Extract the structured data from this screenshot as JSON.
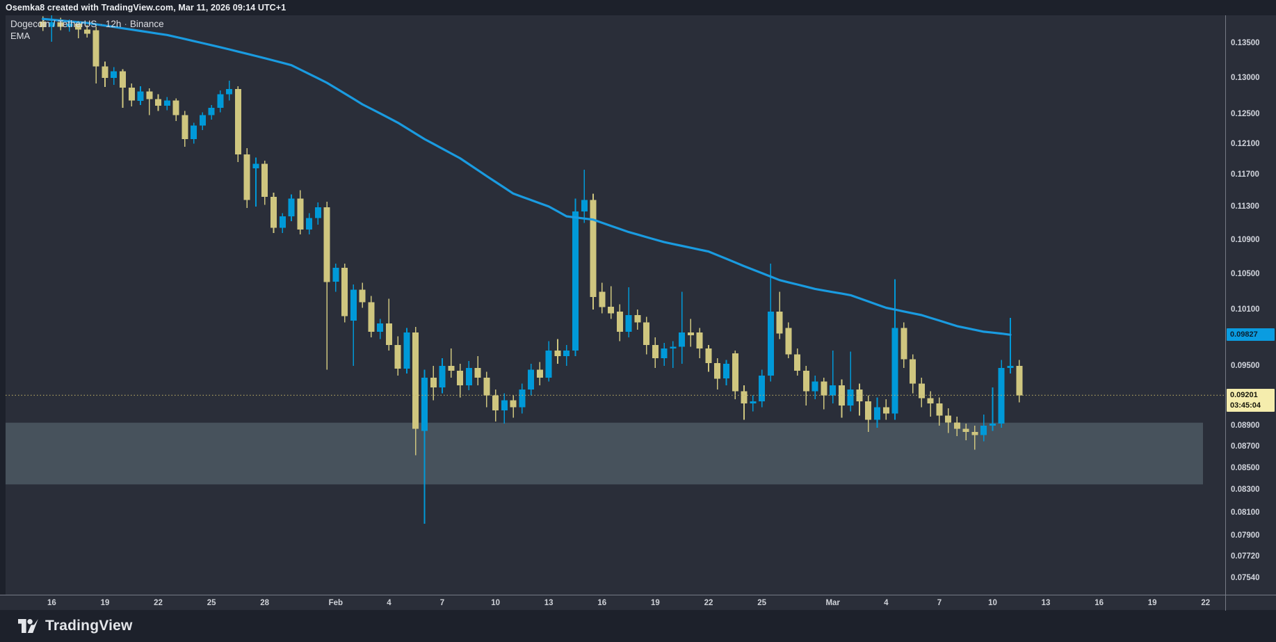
{
  "top_bar": {
    "attribution": "Osemka8 created with TradingView.com, Mar 11, 2026 09:14 UTC+1"
  },
  "legend": {
    "symbol": "Dogecoin / TetherUS",
    "separator": "·",
    "interval": "12h",
    "exchange": "Binance",
    "indicator": "EMA"
  },
  "badges": {
    "ema_value": "0.09827",
    "price_value": "0.09201",
    "countdown": "03:45:04"
  },
  "logo": {
    "text": "TradingView"
  },
  "colors": {
    "background_outer": "#1d212b",
    "background_pane": "#2a2e39",
    "axis_line": "#767b86",
    "axis_text": "#d1d4dc",
    "candle_up": "#0099d8",
    "candle_down": "#cfc67f",
    "ema_line": "#1a9be0",
    "price_line": "#c9ba6b",
    "zone_fill": "#47525c",
    "badge_price_bg": "#f5edad",
    "badge_price_text": "#15150a",
    "badge_ema_bg": "#0a9ce0",
    "badge_ema_text": "#0b2030"
  },
  "chart_data": {
    "type": "candlestick",
    "title": "Dogecoin / TetherUS · 12h · Binance",
    "symbol": "Dogecoin / TetherUS",
    "exchange": "Binance",
    "interval": "12h",
    "indicator": "EMA",
    "scale_type": "log",
    "grid": false,
    "price_range_visible": [
      0.0754,
      0.1395
    ],
    "last_price": 0.09201,
    "last_price_countdown": "03:45:04",
    "ema_last": 0.09827,
    "price_axis_ticks": [
      {
        "text": "0.13500",
        "value": 0.135
      },
      {
        "text": "0.13000",
        "value": 0.13
      },
      {
        "text": "0.12500",
        "value": 0.125
      },
      {
        "text": "0.12100",
        "value": 0.121
      },
      {
        "text": "0.11700",
        "value": 0.117
      },
      {
        "text": "0.11300",
        "value": 0.113
      },
      {
        "text": "0.10900",
        "value": 0.109
      },
      {
        "text": "0.10500",
        "value": 0.105
      },
      {
        "text": "0.10100",
        "value": 0.101
      },
      {
        "text": "0.09500",
        "value": 0.095
      },
      {
        "text": "0.08900",
        "value": 0.089
      },
      {
        "text": "0.08700",
        "value": 0.087
      },
      {
        "text": "0.08500",
        "value": 0.085
      },
      {
        "text": "0.08300",
        "value": 0.083
      },
      {
        "text": "0.08100",
        "value": 0.081
      },
      {
        "text": "0.07900",
        "value": 0.079
      },
      {
        "text": "0.07720",
        "value": 0.0772
      },
      {
        "text": "0.07540",
        "value": 0.0754
      }
    ],
    "time_axis_labels": [
      {
        "text": "16",
        "bar": 1
      },
      {
        "text": "19",
        "bar": 7
      },
      {
        "text": "22",
        "bar": 13
      },
      {
        "text": "25",
        "bar": 19
      },
      {
        "text": "28",
        "bar": 25
      },
      {
        "text": "Feb",
        "bar": 33
      },
      {
        "text": "4",
        "bar": 39
      },
      {
        "text": "7",
        "bar": 45
      },
      {
        "text": "10",
        "bar": 51
      },
      {
        "text": "13",
        "bar": 57
      },
      {
        "text": "16",
        "bar": 63
      },
      {
        "text": "19",
        "bar": 69
      },
      {
        "text": "22",
        "bar": 75
      },
      {
        "text": "25",
        "bar": 81
      },
      {
        "text": "Mar",
        "bar": 89
      },
      {
        "text": "4",
        "bar": 95
      },
      {
        "text": "7",
        "bar": 101
      },
      {
        "text": "10",
        "bar": 107
      },
      {
        "text": "13",
        "bar": 113
      },
      {
        "text": "16",
        "bar": 119
      },
      {
        "text": "19",
        "bar": 125
      },
      {
        "text": "22",
        "bar": 131
      }
    ],
    "zone": {
      "price_top": 0.0893,
      "price_bottom": 0.0835,
      "start_bar": -4.2,
      "end_bar": 130.7
    },
    "price_line_value": 0.09201,
    "candles": [
      [
        0.1382,
        0.139,
        0.1368,
        0.1374
      ],
      [
        0.1374,
        0.1392,
        0.1352,
        0.1381
      ],
      [
        0.1381,
        0.1388,
        0.1369,
        0.1374
      ],
      [
        0.1374,
        0.1385,
        0.1367,
        0.1379
      ],
      [
        0.1379,
        0.1383,
        0.1357,
        0.137
      ],
      [
        0.137,
        0.1377,
        0.1358,
        0.1364
      ],
      [
        0.1369,
        0.1374,
        0.1292,
        0.1316
      ],
      [
        0.1316,
        0.1323,
        0.1287,
        0.13
      ],
      [
        0.13,
        0.1315,
        0.129,
        0.1309
      ],
      [
        0.1309,
        0.1312,
        0.1258,
        0.1286
      ],
      [
        0.1286,
        0.1292,
        0.126,
        0.1268
      ],
      [
        0.1268,
        0.1288,
        0.1262,
        0.1281
      ],
      [
        0.1281,
        0.1285,
        0.1248,
        0.127
      ],
      [
        0.127,
        0.1277,
        0.1254,
        0.1261
      ],
      [
        0.1261,
        0.1273,
        0.1255,
        0.1268
      ],
      [
        0.1268,
        0.1271,
        0.124,
        0.1248
      ],
      [
        0.1248,
        0.1254,
        0.1206,
        0.1216
      ],
      [
        0.1216,
        0.1238,
        0.121,
        0.1234
      ],
      [
        0.1234,
        0.1252,
        0.1228,
        0.1248
      ],
      [
        0.1248,
        0.1262,
        0.1242,
        0.1258
      ],
      [
        0.1258,
        0.1282,
        0.1252,
        0.1277
      ],
      [
        0.1277,
        0.1296,
        0.1268,
        0.1284
      ],
      [
        0.1284,
        0.1288,
        0.1186,
        0.1196
      ],
      [
        0.1196,
        0.1204,
        0.1128,
        0.1138
      ],
      [
        0.1178,
        0.1192,
        0.113,
        0.1184
      ],
      [
        0.1184,
        0.1188,
        0.1132,
        0.1142
      ],
      [
        0.1142,
        0.1147,
        0.1098,
        0.1104
      ],
      [
        0.1104,
        0.1122,
        0.1098,
        0.1118
      ],
      [
        0.1118,
        0.1145,
        0.1112,
        0.114
      ],
      [
        0.114,
        0.115,
        0.1096,
        0.1102
      ],
      [
        0.1102,
        0.1122,
        0.1096,
        0.1116
      ],
      [
        0.1116,
        0.1135,
        0.1108,
        0.1129
      ],
      [
        0.1129,
        0.1136,
        0.0946,
        0.1041
      ],
      [
        0.1041,
        0.1062,
        0.103,
        0.1057
      ],
      [
        0.1057,
        0.1062,
        0.0996,
        0.1003
      ],
      [
        0.0998,
        0.1038,
        0.095,
        0.1032
      ],
      [
        0.1032,
        0.104,
        0.1012,
        0.1018
      ],
      [
        0.1018,
        0.1025,
        0.098,
        0.0986
      ],
      [
        0.0986,
        0.1,
        0.0978,
        0.0995
      ],
      [
        0.0995,
        0.1022,
        0.0966,
        0.0972
      ],
      [
        0.0972,
        0.0981,
        0.094,
        0.0947
      ],
      [
        0.0947,
        0.099,
        0.0942,
        0.0985
      ],
      [
        0.0985,
        0.0991,
        0.0862,
        0.0887
      ],
      [
        0.0885,
        0.0946,
        0.08,
        0.0938
      ],
      [
        0.0938,
        0.095,
        0.0915,
        0.0928
      ],
      [
        0.0928,
        0.0958,
        0.0922,
        0.095
      ],
      [
        0.095,
        0.0968,
        0.0938,
        0.0945
      ],
      [
        0.0945,
        0.0952,
        0.0918,
        0.093
      ],
      [
        0.093,
        0.0955,
        0.0925,
        0.0948
      ],
      [
        0.0948,
        0.096,
        0.093,
        0.0938
      ],
      [
        0.0938,
        0.0944,
        0.0908,
        0.092
      ],
      [
        0.092,
        0.0926,
        0.0894,
        0.0905
      ],
      [
        0.0905,
        0.0922,
        0.0892,
        0.0915
      ],
      [
        0.0915,
        0.092,
        0.0898,
        0.0908
      ],
      [
        0.0908,
        0.0932,
        0.0902,
        0.0926
      ],
      [
        0.0926,
        0.0952,
        0.092,
        0.0946
      ],
      [
        0.0946,
        0.0954,
        0.093,
        0.0938
      ],
      [
        0.0938,
        0.0976,
        0.0934,
        0.0966
      ],
      [
        0.0966,
        0.0978,
        0.0952,
        0.096
      ],
      [
        0.096,
        0.0972,
        0.095,
        0.0966
      ],
      [
        0.0966,
        0.114,
        0.096,
        0.1124
      ],
      [
        0.1124,
        0.1176,
        0.111,
        0.1138
      ],
      [
        0.1138,
        0.1146,
        0.101,
        0.1024
      ],
      [
        0.103,
        0.104,
        0.1006,
        0.1013
      ],
      [
        0.1013,
        0.1036,
        0.1,
        0.1006
      ],
      [
        0.1008,
        0.1016,
        0.0976,
        0.0986
      ],
      [
        0.0986,
        0.1035,
        0.098,
        0.1004
      ],
      [
        0.1004,
        0.101,
        0.0988,
        0.0996
      ],
      [
        0.0996,
        0.1002,
        0.0962,
        0.0972
      ],
      [
        0.0972,
        0.098,
        0.0948,
        0.0958
      ],
      [
        0.0958,
        0.0974,
        0.095,
        0.0968
      ],
      [
        0.0968,
        0.0976,
        0.0948,
        0.097
      ],
      [
        0.097,
        0.103,
        0.0952,
        0.0985
      ],
      [
        0.0985,
        0.1,
        0.097,
        0.0982
      ],
      [
        0.0985,
        0.099,
        0.0958,
        0.0968
      ],
      [
        0.0968,
        0.0972,
        0.0944,
        0.0953
      ],
      [
        0.0953,
        0.0958,
        0.0926,
        0.0937
      ],
      [
        0.0937,
        0.0956,
        0.093,
        0.0952
      ],
      [
        0.0963,
        0.0966,
        0.0916,
        0.0924
      ],
      [
        0.0924,
        0.093,
        0.0896,
        0.0912
      ],
      [
        0.0912,
        0.092,
        0.0904,
        0.0914
      ],
      [
        0.0914,
        0.0946,
        0.0908,
        0.094
      ],
      [
        0.094,
        0.1062,
        0.0934,
        0.1008
      ],
      [
        0.1008,
        0.103,
        0.0978,
        0.0984
      ],
      [
        0.099,
        0.0996,
        0.0958,
        0.0962
      ],
      [
        0.0962,
        0.0968,
        0.094,
        0.0945
      ],
      [
        0.0945,
        0.095,
        0.091,
        0.0924
      ],
      [
        0.0924,
        0.094,
        0.0916,
        0.0934
      ],
      [
        0.0934,
        0.0938,
        0.0906,
        0.092
      ],
      [
        0.092,
        0.0966,
        0.0912,
        0.093
      ],
      [
        0.093,
        0.0936,
        0.0898,
        0.091
      ],
      [
        0.091,
        0.0965,
        0.0904,
        0.0926
      ],
      [
        0.0926,
        0.0932,
        0.09,
        0.0914
      ],
      [
        0.0914,
        0.092,
        0.0884,
        0.0896
      ],
      [
        0.0896,
        0.0918,
        0.0888,
        0.0908
      ],
      [
        0.0908,
        0.0916,
        0.0896,
        0.0902
      ],
      [
        0.0902,
        0.1044,
        0.0896,
        0.099
      ],
      [
        0.099,
        0.0996,
        0.0948,
        0.0957
      ],
      [
        0.0957,
        0.0962,
        0.0922,
        0.0932
      ],
      [
        0.0932,
        0.0938,
        0.0908,
        0.0917
      ],
      [
        0.0917,
        0.0924,
        0.0899,
        0.0912
      ],
      [
        0.0912,
        0.0918,
        0.089,
        0.09
      ],
      [
        0.09,
        0.0907,
        0.0883,
        0.0893
      ],
      [
        0.0893,
        0.0899,
        0.088,
        0.0887
      ],
      [
        0.0887,
        0.0892,
        0.0876,
        0.0884
      ],
      [
        0.0884,
        0.089,
        0.0867,
        0.0881
      ],
      [
        0.0881,
        0.0901,
        0.0875,
        0.089
      ],
      [
        0.089,
        0.0928,
        0.0885,
        0.0892
      ],
      [
        0.0892,
        0.0956,
        0.0888,
        0.0948
      ],
      [
        0.0948,
        0.1001,
        0.0942,
        0.095
      ],
      [
        0.095,
        0.0956,
        0.0913,
        0.092
      ]
    ],
    "ema_points": [
      [
        0,
        0.1386
      ],
      [
        5,
        0.138
      ],
      [
        9,
        0.1372
      ],
      [
        14,
        0.1362
      ],
      [
        20,
        0.1344
      ],
      [
        25,
        0.1328
      ],
      [
        28,
        0.1318
      ],
      [
        32,
        0.1293
      ],
      [
        36,
        0.1263
      ],
      [
        40,
        0.1238
      ],
      [
        43,
        0.1216
      ],
      [
        47,
        0.1191
      ],
      [
        50,
        0.1168
      ],
      [
        53,
        0.1146
      ],
      [
        57,
        0.113
      ],
      [
        59,
        0.1118
      ],
      [
        62,
        0.1114
      ],
      [
        66,
        0.1099
      ],
      [
        70,
        0.1087
      ],
      [
        75,
        0.1076
      ],
      [
        79,
        0.1059
      ],
      [
        83,
        0.1043
      ],
      [
        87,
        0.1033
      ],
      [
        91,
        0.1026
      ],
      [
        95,
        0.1012
      ],
      [
        99,
        0.1004
      ],
      [
        103,
        0.0992
      ],
      [
        106,
        0.0986
      ],
      [
        108,
        0.0984
      ],
      [
        109,
        0.09827
      ]
    ]
  }
}
